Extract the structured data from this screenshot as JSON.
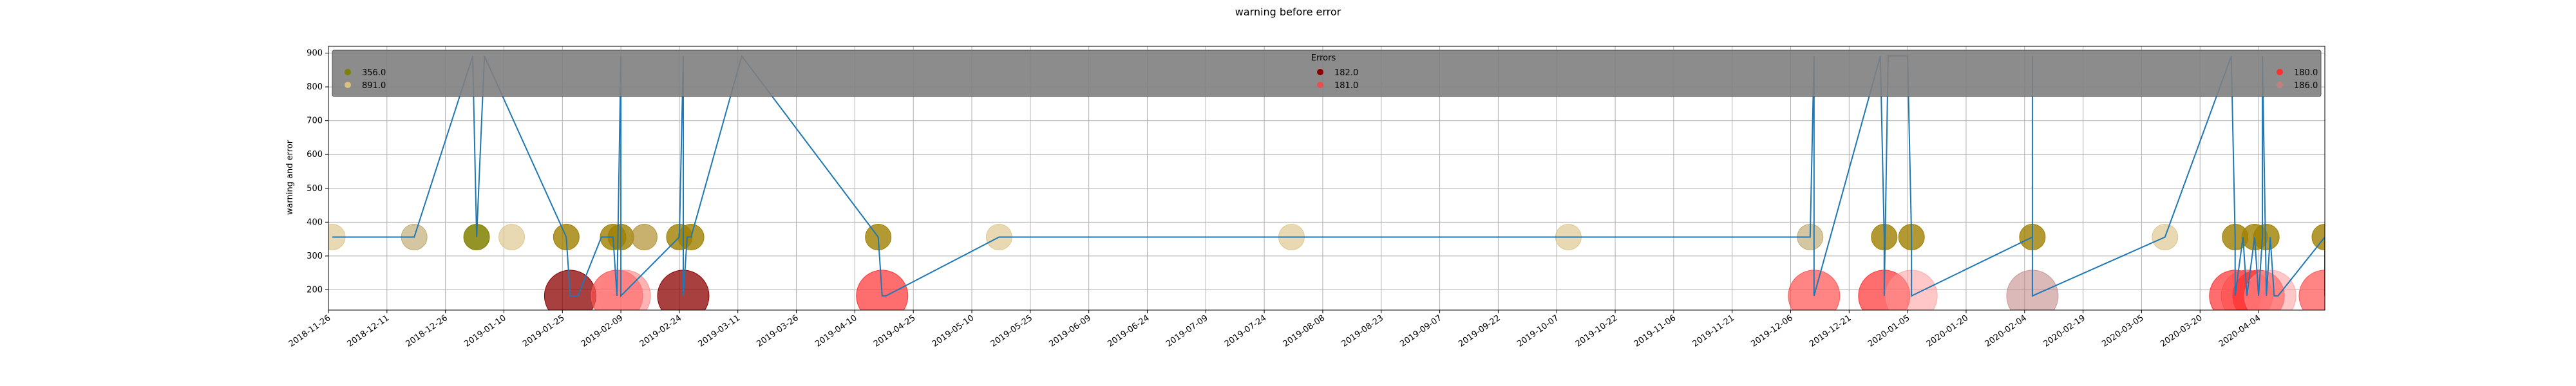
{
  "chart_data": {
    "type": "scatter",
    "title": "warning before error",
    "xlabel": "",
    "ylabel": "warning and error",
    "ylim": [
      140,
      920
    ],
    "xlim": [
      "2018-11-26",
      "2020-04-21"
    ],
    "grid": true,
    "yticks": [
      200,
      300,
      400,
      500,
      600,
      700,
      800,
      900
    ],
    "xticks": [
      "2018-11-26",
      "2018-12-11",
      "2018-12-26",
      "2019-01-10",
      "2019-01-25",
      "2019-02-09",
      "2019-02-24",
      "2019-03-11",
      "2019-03-26",
      "2019-04-10",
      "2019-04-25",
      "2019-05-10",
      "2019-05-25",
      "2019-06-09",
      "2019-06-24",
      "2019-07-09",
      "2019-07-24",
      "2019-08-08",
      "2019-08-23",
      "2019-09-07",
      "2019-09-22",
      "2019-10-07",
      "2019-10-22",
      "2019-11-06",
      "2019-11-21",
      "2019-12-06",
      "2019-12-21",
      "2020-01-05",
      "2020-01-20",
      "2020-02-04",
      "2020-02-19",
      "2020-03-05",
      "2020-03-20",
      "2020-04-04"
    ],
    "legend": {
      "title": "Errors",
      "placement": "top",
      "entries": [
        {
          "label": "356.0",
          "color": "#808000"
        },
        {
          "label": "891.0",
          "color": "#d8c080"
        },
        {
          "label": "182.0",
          "color": "#8b0000"
        },
        {
          "label": "181.0",
          "color": "#e85050"
        },
        {
          "label": "180.0",
          "color": "#ff3030"
        },
        {
          "label": "186.0",
          "color": "#c08080"
        }
      ]
    },
    "line": {
      "color": "#1f77b4",
      "points": [
        [
          "2018-11-27",
          356
        ],
        [
          "2018-12-18",
          356
        ],
        [
          "2019-01-02",
          891
        ],
        [
          "2019-01-03",
          356
        ],
        [
          "2019-01-05",
          891
        ],
        [
          "2019-01-26",
          356
        ],
        [
          "2019-01-27",
          182
        ],
        [
          "2019-01-29",
          182
        ],
        [
          "2019-02-04",
          356
        ],
        [
          "2019-02-07",
          356
        ],
        [
          "2019-02-08",
          182
        ],
        [
          "2019-02-09",
          891
        ],
        [
          "2019-02-09",
          182
        ],
        [
          "2019-02-24",
          356
        ],
        [
          "2019-02-25",
          891
        ],
        [
          "2019-02-25",
          182
        ],
        [
          "2019-02-26",
          356
        ],
        [
          "2019-02-27",
          356
        ],
        [
          "2019-03-12",
          891
        ],
        [
          "2019-04-16",
          356
        ],
        [
          "2019-04-17",
          182
        ],
        [
          "2019-04-18",
          182
        ],
        [
          "2019-05-17",
          356
        ],
        [
          "2019-12-11",
          356
        ],
        [
          "2019-12-12",
          891
        ],
        [
          "2019-12-12",
          182
        ],
        [
          "2019-12-29",
          891
        ],
        [
          "2019-12-30",
          356
        ],
        [
          "2019-12-30",
          182
        ],
        [
          "2019-12-31",
          891
        ],
        [
          "2020-01-05",
          891
        ],
        [
          "2020-01-06",
          356
        ],
        [
          "2020-01-06",
          182
        ],
        [
          "2020-02-06",
          356
        ],
        [
          "2020-02-06",
          891
        ],
        [
          "2020-02-06",
          182
        ],
        [
          "2020-03-11",
          356
        ],
        [
          "2020-03-28",
          891
        ],
        [
          "2020-03-29",
          356
        ],
        [
          "2020-03-29",
          182
        ],
        [
          "2020-03-31",
          356
        ],
        [
          "2020-04-01",
          182
        ],
        [
          "2020-04-03",
          356
        ],
        [
          "2020-04-04",
          182
        ],
        [
          "2020-04-05",
          356
        ],
        [
          "2020-04-05",
          891
        ],
        [
          "2020-04-06",
          182
        ],
        [
          "2020-04-07",
          356
        ],
        [
          "2020-04-08",
          182
        ],
        [
          "2020-04-09",
          182
        ],
        [
          "2020-04-21",
          356
        ],
        [
          "2020-04-21",
          182
        ]
      ]
    },
    "points": [
      {
        "x": "2018-11-27",
        "y": 356,
        "color": "#d8c080",
        "size": 20,
        "alpha": 0.6
      },
      {
        "x": "2018-12-18",
        "y": 356,
        "color": "#b8a060",
        "size": 20,
        "alpha": 0.6
      },
      {
        "x": "2019-01-03",
        "y": 356,
        "color": "#808000",
        "size": 20,
        "alpha": 0.85
      },
      {
        "x": "2019-01-12",
        "y": 356,
        "color": "#d8c080",
        "size": 20,
        "alpha": 0.6
      },
      {
        "x": "2019-01-26",
        "y": 356,
        "color": "#a08000",
        "size": 20,
        "alpha": 0.8
      },
      {
        "x": "2019-01-27",
        "y": 182,
        "color": "#8b0000",
        "size": 40,
        "alpha": 0.75
      },
      {
        "x": "2019-02-07",
        "y": 356,
        "color": "#a08000",
        "size": 20,
        "alpha": 0.8
      },
      {
        "x": "2019-02-08",
        "y": 182,
        "color": "#ff5050",
        "size": 40,
        "alpha": 0.7
      },
      {
        "x": "2019-02-10",
        "y": 182,
        "color": "#ff8080",
        "size": 40,
        "alpha": 0.6
      },
      {
        "x": "2019-02-09",
        "y": 356,
        "color": "#a08000",
        "size": 20,
        "alpha": 0.8
      },
      {
        "x": "2019-02-15",
        "y": 356,
        "color": "#b09030",
        "size": 20,
        "alpha": 0.7
      },
      {
        "x": "2019-02-24",
        "y": 356,
        "color": "#a08000",
        "size": 20,
        "alpha": 0.8
      },
      {
        "x": "2019-02-25",
        "y": 182,
        "color": "#8b0000",
        "size": 40,
        "alpha": 0.75
      },
      {
        "x": "2019-02-27",
        "y": 356,
        "color": "#a08000",
        "size": 20,
        "alpha": 0.8
      },
      {
        "x": "2019-04-16",
        "y": 356,
        "color": "#a08000",
        "size": 20,
        "alpha": 0.8
      },
      {
        "x": "2019-04-17",
        "y": 182,
        "color": "#ff3030",
        "size": 40,
        "alpha": 0.7
      },
      {
        "x": "2019-05-17",
        "y": 356,
        "color": "#d8c080",
        "size": 20,
        "alpha": 0.6
      },
      {
        "x": "2019-07-31",
        "y": 356,
        "color": "#d8c080",
        "size": 20,
        "alpha": 0.6
      },
      {
        "x": "2019-10-10",
        "y": 356,
        "color": "#d8c080",
        "size": 20,
        "alpha": 0.6
      },
      {
        "x": "2019-12-11",
        "y": 356,
        "color": "#b8a060",
        "size": 20,
        "alpha": 0.6
      },
      {
        "x": "2019-12-12",
        "y": 182,
        "color": "#ff5050",
        "size": 40,
        "alpha": 0.7
      },
      {
        "x": "2019-12-30",
        "y": 356,
        "color": "#a08000",
        "size": 20,
        "alpha": 0.8
      },
      {
        "x": "2019-12-30",
        "y": 182,
        "color": "#ff3030",
        "size": 40,
        "alpha": 0.7
      },
      {
        "x": "2020-01-06",
        "y": 356,
        "color": "#a08000",
        "size": 20,
        "alpha": 0.8
      },
      {
        "x": "2020-01-06",
        "y": 182,
        "color": "#ff9999",
        "size": 40,
        "alpha": 0.55
      },
      {
        "x": "2020-02-06",
        "y": 356,
        "color": "#a08000",
        "size": 20,
        "alpha": 0.8
      },
      {
        "x": "2020-02-06",
        "y": 182,
        "color": "#c08080",
        "size": 40,
        "alpha": 0.55
      },
      {
        "x": "2020-03-11",
        "y": 356,
        "color": "#d8c080",
        "size": 20,
        "alpha": 0.6
      },
      {
        "x": "2020-03-29",
        "y": 356,
        "color": "#a08000",
        "size": 20,
        "alpha": 0.8
      },
      {
        "x": "2020-03-29",
        "y": 182,
        "color": "#ff3030",
        "size": 40,
        "alpha": 0.7
      },
      {
        "x": "2020-04-01",
        "y": 182,
        "color": "#ff5050",
        "size": 40,
        "alpha": 0.7
      },
      {
        "x": "2020-04-03",
        "y": 356,
        "color": "#a08000",
        "size": 20,
        "alpha": 0.8
      },
      {
        "x": "2020-04-04",
        "y": 182,
        "color": "#ff3030",
        "size": 40,
        "alpha": 0.7
      },
      {
        "x": "2020-04-06",
        "y": 356,
        "color": "#a08000",
        "size": 20,
        "alpha": 0.8
      },
      {
        "x": "2020-04-07",
        "y": 182,
        "color": "#ff9999",
        "size": 40,
        "alpha": 0.55
      },
      {
        "x": "2020-04-21",
        "y": 356,
        "color": "#a08000",
        "size": 20,
        "alpha": 0.8
      },
      {
        "x": "2020-04-21",
        "y": 182,
        "color": "#ff5050",
        "size": 40,
        "alpha": 0.7
      }
    ]
  }
}
